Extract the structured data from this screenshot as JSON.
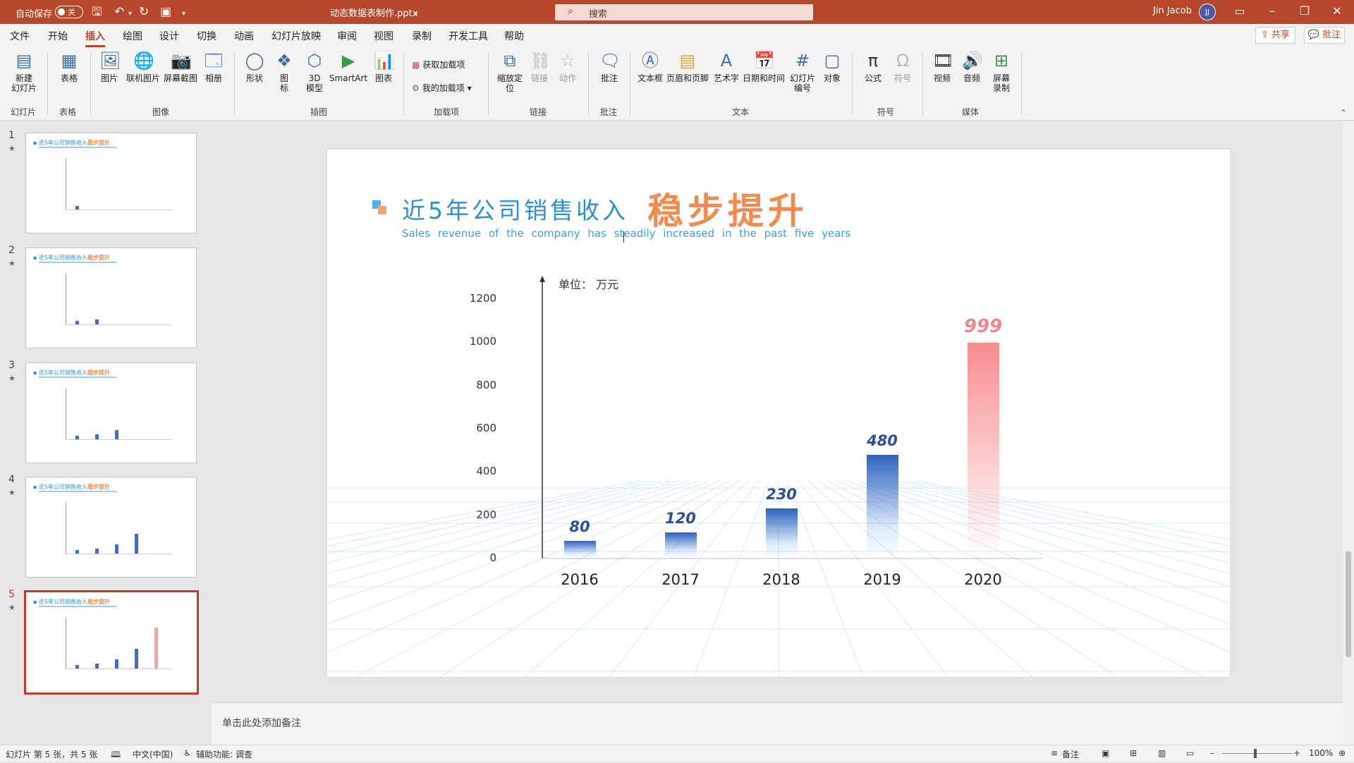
{
  "titlebar": {
    "autosave_label": "自动保存",
    "autosave_state": "关",
    "filename": "动态数据表制作.pptx",
    "search_placeholder": "搜索",
    "user_name": "Jin Jacob",
    "user_initials": "JJ"
  },
  "menu": {
    "tabs": [
      "文件",
      "开始",
      "插入",
      "绘图",
      "设计",
      "切换",
      "动画",
      "幻灯片放映",
      "审阅",
      "视图",
      "录制",
      "开发工具",
      "帮助"
    ],
    "active_tab": "插入",
    "share_label": "共享",
    "comments_label": "批注"
  },
  "ribbon": {
    "buttons": {
      "new_slide": "新建\n幻灯片",
      "table": "表格",
      "picture": "图片",
      "online_picture": "联机图片",
      "screenshot": "屏幕截图",
      "album": "相册",
      "shapes": "形状",
      "icons": "图\n标",
      "model3d": "3D\n模型",
      "smartart": "SmartArt",
      "chart": "图表",
      "get_addins": "获取加载项",
      "my_addins": "我的加载项",
      "zoom": "缩放定\n位",
      "link": "链接",
      "action": "动作",
      "comment": "批注",
      "textbox": "文本框",
      "header_footer": "页眉和页脚",
      "wordart": "艺术字",
      "datetime": "日期和时间",
      "slide_number": "幻灯片\n编号",
      "object": "对象",
      "equation": "公式",
      "symbol": "符号",
      "video": "视频",
      "audio": "音频",
      "screen_recording": "屏幕\n录制"
    },
    "groups": {
      "slides": "幻灯片",
      "tables": "表格",
      "images": "图像",
      "illustrations": "插图",
      "addins": "加载项",
      "links": "链接",
      "comments": "批注",
      "text": "文本",
      "symbols": "符号",
      "media": "媒体"
    }
  },
  "thumbnails": [
    {
      "number": "1",
      "title_a": "近5年公司销售收入",
      "title_b": "稳步提升",
      "values": [
        80
      ]
    },
    {
      "number": "2",
      "title_a": "近5年公司销售收入",
      "title_b": "稳步提升",
      "values": [
        80,
        120
      ]
    },
    {
      "number": "3",
      "title_a": "近5年公司销售收入",
      "title_b": "稳步提升",
      "values": [
        80,
        120,
        230
      ]
    },
    {
      "number": "4",
      "title_a": "近5年公司销售收入",
      "title_b": "稳步提升",
      "values": [
        80,
        120,
        230,
        480
      ]
    },
    {
      "number": "5",
      "title_a": "近5年公司销售收入",
      "title_b": "稳步提升",
      "values": [
        80,
        120,
        230,
        480,
        999
      ]
    }
  ],
  "selected_slide": 5,
  "slide": {
    "title_main": "近5年公司销售收入",
    "title_highlight": "稳步提升",
    "subtitle": "Sales revenue of the company has steadily increased in the past five years",
    "unit_label": "单位：  万元",
    "accent_blue": "#2b8fd8",
    "accent_orange": "#f28b50"
  },
  "chart_data": {
    "type": "bar",
    "title": "近5年公司销售收入稳步提升",
    "ylabel": "单位：万元",
    "categories": [
      "2016",
      "2017",
      "2018",
      "2019",
      "2020"
    ],
    "values": [
      80,
      120,
      230,
      480,
      999
    ],
    "value_labels": [
      "80",
      "120",
      "230",
      "480",
      "999"
    ],
    "yticks": [
      0,
      200,
      400,
      600,
      800,
      1000,
      1200
    ],
    "ylim": [
      0,
      1200
    ],
    "highlight_index": 4,
    "bar_color": "#2c62c0",
    "highlight_color": "#f78c8f"
  },
  "notes_placeholder": "单击此处添加备注",
  "status": {
    "slide_info": "幻灯片 第 5 张，共 5 张",
    "language": "中文(中国)",
    "accessibility": "辅助功能: 调查",
    "notes_button": "备注",
    "zoom": "100%"
  }
}
